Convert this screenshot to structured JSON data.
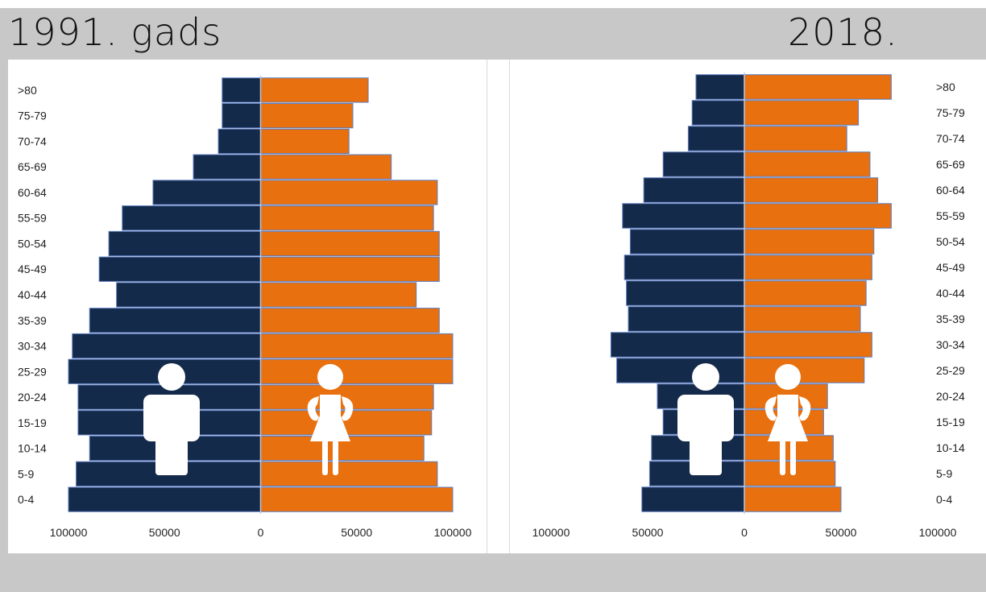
{
  "colors": {
    "male": "#142a4a",
    "female": "#e8700e",
    "bar_outline": "#5b7bbf",
    "frame": "#c8c8c8"
  },
  "icons": {
    "male": "man-icon",
    "female": "woman-icon"
  },
  "chart_data": [
    {
      "type": "bar",
      "orientation": "horizontal-population-pyramid",
      "title": "1991. gads",
      "categories": [
        "0-4",
        "5-9",
        "10-14",
        "15-19",
        "20-24",
        "25-29",
        "30-34",
        "35-39",
        "40-44",
        "45-49",
        "50-54",
        "55-59",
        "60-64",
        "65-69",
        "70-74",
        "75-79",
        ">80"
      ],
      "series": [
        {
          "key": "male",
          "values": [
            100000,
            96000,
            89000,
            95000,
            95000,
            100000,
            98000,
            89000,
            75000,
            84000,
            79000,
            72000,
            56000,
            35000,
            22000,
            20000,
            20000
          ]
        },
        {
          "key": "female",
          "values": [
            100000,
            92000,
            85000,
            89000,
            90000,
            100000,
            100000,
            93000,
            81000,
            93000,
            93000,
            90000,
            92000,
            68000,
            46000,
            48000,
            56000
          ]
        }
      ],
      "xlim": [
        -100000,
        100000
      ],
      "x_tick_labels": [
        "100000",
        "50000",
        "0",
        "50000",
        "100000"
      ],
      "x_tick_values": [
        -100000,
        -50000,
        0,
        50000,
        100000
      ],
      "label_side": "left",
      "grid": false
    },
    {
      "type": "bar",
      "orientation": "horizontal-population-pyramid",
      "title": "2018. gads",
      "categories": [
        "0-4",
        "5-9",
        "10-14",
        "15-19",
        "20-24",
        "25-29",
        "30-34",
        "35-39",
        "40-44",
        "45-49",
        "50-54",
        "55-59",
        "60-64",
        "65-69",
        "70-74",
        "75-79",
        ">80"
      ],
      "series": [
        {
          "key": "male",
          "values": [
            53000,
            49000,
            48000,
            42000,
            45000,
            66000,
            69000,
            60000,
            61000,
            62000,
            59000,
            63000,
            52000,
            42000,
            29000,
            27000,
            25000
          ]
        },
        {
          "key": "female",
          "values": [
            50000,
            47000,
            46000,
            41000,
            43000,
            62000,
            66000,
            60000,
            63000,
            66000,
            67000,
            76000,
            69000,
            65000,
            53000,
            59000,
            76000
          ]
        }
      ],
      "xlim": [
        -100000,
        100000
      ],
      "x_tick_labels": [
        "100000",
        "50000",
        "0",
        "50000",
        "100000"
      ],
      "x_tick_values": [
        -100000,
        -50000,
        0,
        50000,
        100000
      ],
      "label_side": "right",
      "grid": false
    }
  ]
}
